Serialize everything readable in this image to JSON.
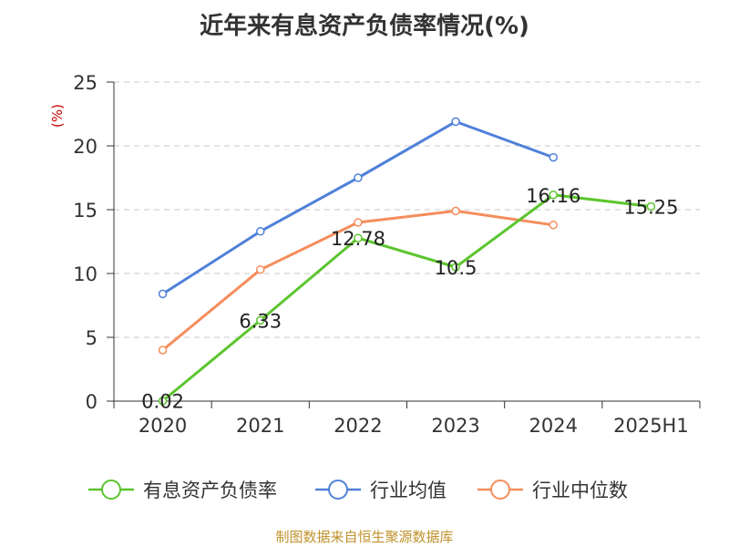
{
  "chart_data": {
    "type": "line",
    "title": "近年来有息资产负债率情况(%)",
    "ylabel": "(%)",
    "ylim": [
      0,
      25
    ],
    "yticks": [
      0,
      5,
      10,
      15,
      20,
      25
    ],
    "categories": [
      "2020",
      "2021",
      "2022",
      "2023",
      "2024",
      "2025H1"
    ],
    "grid": true,
    "legend_position": "bottom",
    "series": [
      {
        "name": "有息资产负债率",
        "color": "#5cc52e",
        "values": [
          0.02,
          6.33,
          12.78,
          10.5,
          16.16,
          15.25
        ],
        "labels": [
          "0.02",
          "6.33",
          "12.78",
          "10.5",
          "16.16",
          "15.25"
        ]
      },
      {
        "name": "行业均值",
        "color": "#4f81d9",
        "values": [
          8.4,
          13.3,
          17.5,
          21.9,
          19.1,
          null
        ]
      },
      {
        "name": "行业中位数",
        "color": "#f58d5c",
        "values": [
          4.0,
          10.3,
          14.0,
          14.9,
          13.8,
          null
        ]
      }
    ]
  },
  "footer": {
    "source": "制图数据来自恒生聚源数据库"
  }
}
